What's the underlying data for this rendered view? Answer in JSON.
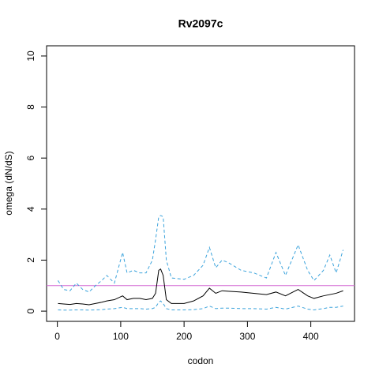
{
  "chart_data": {
    "type": "line",
    "title": "Rv2097c",
    "xlabel": "codon",
    "ylabel": "omega (dN/dS)",
    "x": [
      1,
      10,
      20,
      30,
      40,
      50,
      60,
      70,
      78,
      90,
      103,
      110,
      120,
      130,
      140,
      150,
      155,
      160,
      163,
      167,
      172,
      180,
      200,
      215,
      230,
      240,
      250,
      260,
      270,
      290,
      310,
      330,
      345,
      360,
      380,
      395,
      405,
      420,
      430,
      440,
      451
    ],
    "series": [
      {
        "color": "#000000",
        "dash": "solid",
        "values": [
          0.3,
          0.28,
          0.26,
          0.3,
          0.28,
          0.25,
          0.3,
          0.35,
          0.4,
          0.45,
          0.6,
          0.45,
          0.5,
          0.5,
          0.45,
          0.5,
          0.7,
          1.6,
          1.65,
          1.4,
          0.45,
          0.3,
          0.3,
          0.4,
          0.6,
          0.9,
          0.7,
          0.8,
          0.78,
          0.75,
          0.7,
          0.65,
          0.75,
          0.6,
          0.85,
          0.6,
          0.5,
          0.6,
          0.65,
          0.7,
          0.8
        ]
      },
      {
        "color": "#3ba3dc",
        "dash": "dashed",
        "values": [
          1.2,
          0.85,
          0.8,
          1.1,
          0.85,
          0.75,
          1.0,
          1.2,
          1.4,
          1.1,
          2.3,
          1.5,
          1.6,
          1.5,
          1.5,
          2.0,
          2.8,
          3.7,
          3.75,
          3.7,
          2.0,
          1.3,
          1.25,
          1.4,
          1.8,
          2.5,
          1.7,
          2.0,
          1.9,
          1.6,
          1.5,
          1.3,
          2.3,
          1.4,
          2.6,
          1.6,
          1.2,
          1.6,
          2.2,
          1.5,
          2.4
        ]
      },
      {
        "color": "#3ba3dc",
        "dash": "dashed",
        "values": [
          0.05,
          0.04,
          0.04,
          0.05,
          0.05,
          0.04,
          0.05,
          0.06,
          0.08,
          0.1,
          0.15,
          0.1,
          0.1,
          0.1,
          0.08,
          0.1,
          0.15,
          0.35,
          0.4,
          0.3,
          0.1,
          0.05,
          0.05,
          0.06,
          0.1,
          0.2,
          0.1,
          0.12,
          0.12,
          0.1,
          0.1,
          0.08,
          0.15,
          0.08,
          0.2,
          0.08,
          0.05,
          0.1,
          0.15,
          0.15,
          0.2
        ]
      }
    ],
    "hline": {
      "value": 1,
      "color": "#d46ad4"
    },
    "xlim": [
      -17,
      469
    ],
    "ylim": [
      -0.4,
      10.4
    ],
    "xticks": [
      0,
      100,
      200,
      300,
      400
    ],
    "yticks": [
      0,
      2,
      4,
      6,
      8,
      10
    ]
  }
}
